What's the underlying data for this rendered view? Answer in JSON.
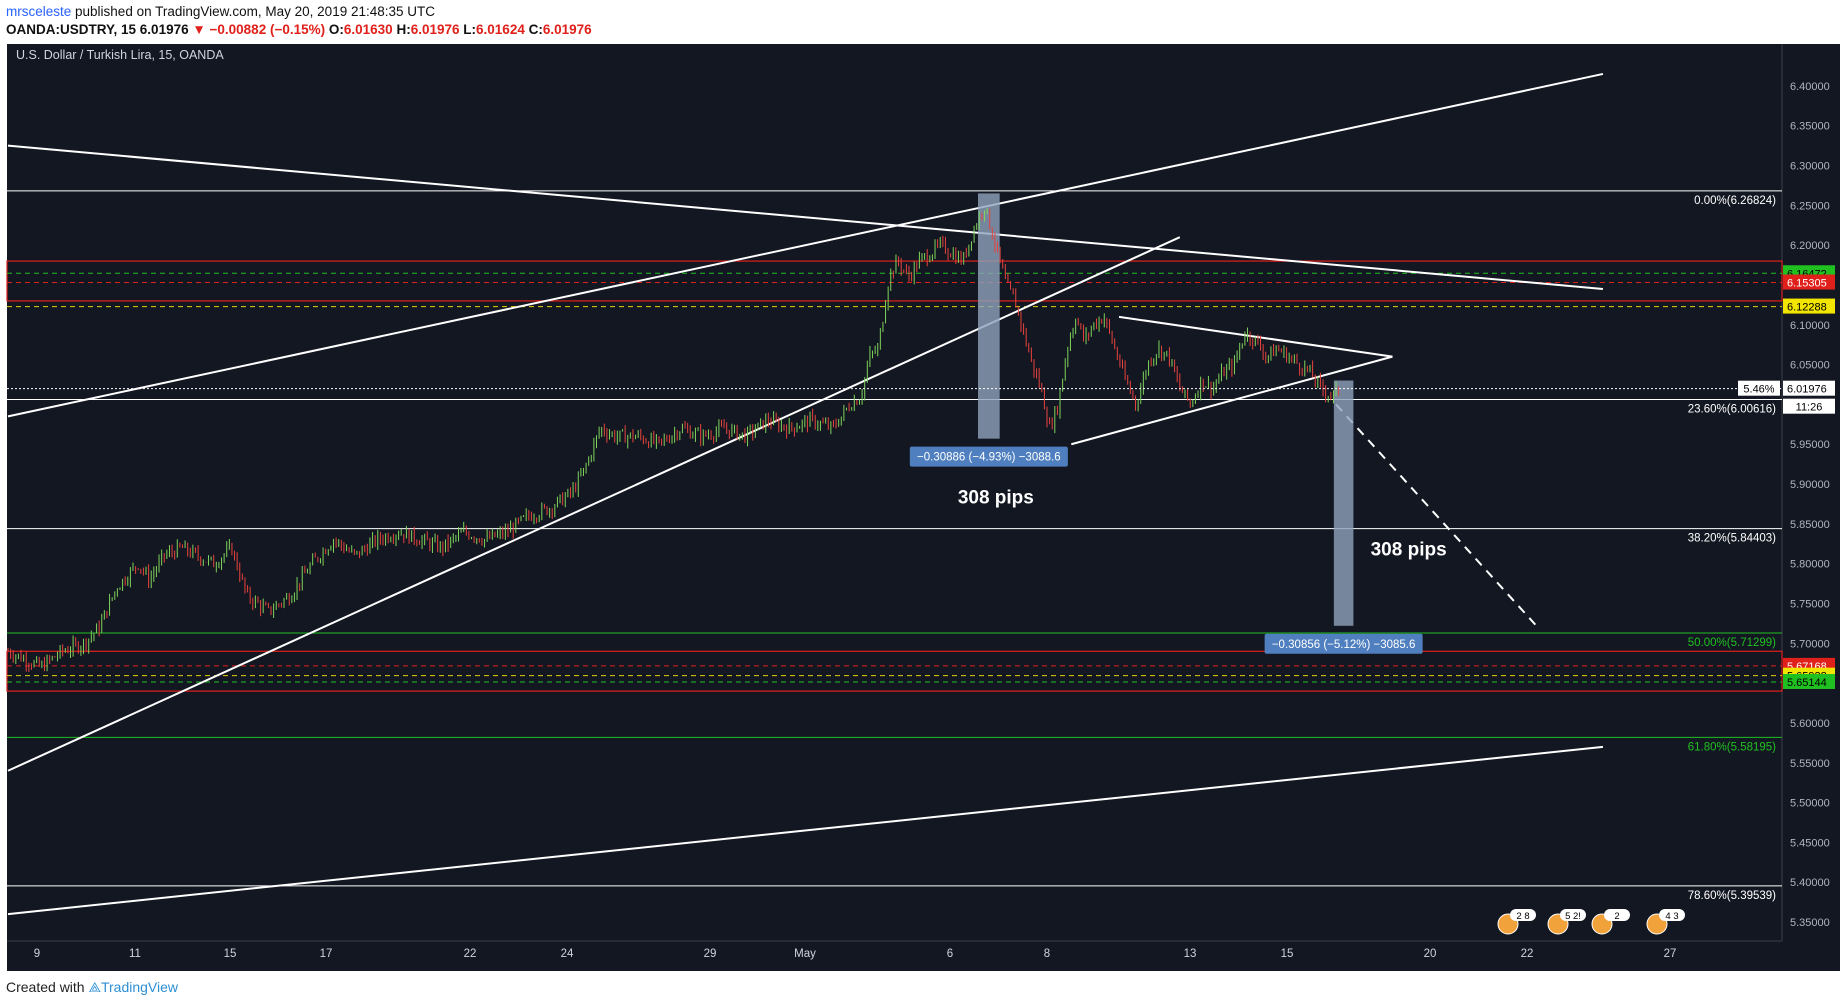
{
  "header": {
    "author": "mrsceleste",
    "published": "published on TradingView.com, May 20, 2019 21:48:35 UTC",
    "symbol": "OANDA:USDTRY, 15",
    "last": "6.01976",
    "change": "−0.00882 (−0.15%)",
    "o_label": "O:",
    "o": "6.01630",
    "h_label": "H:",
    "h": "6.01976",
    "l_label": "L:",
    "l": "6.01624",
    "c_label": "C:",
    "c": "6.01976"
  },
  "footer": {
    "created": "Created with",
    "brand": "TradingView"
  },
  "colors": {
    "background": "#131722",
    "up": "#26a69a",
    "down": "#ef5350",
    "green_candle": "#7fd35a",
    "red_candle": "#e8433d",
    "resistance": "#e0201b",
    "support_green": "#21c021",
    "dashed_yellow": "#e6d200",
    "measure_box": "#8ea2bd"
  },
  "chart_data": {
    "type": "candlestick",
    "title": "U.S. Dollar / Turkish Lira, 15, OANDA",
    "ylim": [
      5.34,
      6.43
    ],
    "y_ticks": [
      "6.40000",
      "6.35000",
      "6.30000",
      "6.25000",
      "6.20000",
      "6.15000",
      "6.10000",
      "6.05000",
      "6.00000",
      "5.95000",
      "5.90000",
      "5.85000",
      "5.80000",
      "5.75000",
      "5.70000",
      "5.65000",
      "5.60000",
      "5.55000",
      "5.50000",
      "5.45000",
      "5.40000",
      "5.35000"
    ],
    "x_ticks": [
      "9",
      "11",
      "15",
      "17",
      "22",
      "24",
      "29",
      "May",
      "6",
      "8",
      "13",
      "15",
      "20",
      "22",
      "27"
    ],
    "price_path": [
      [
        0,
        5.69
      ],
      [
        0.8,
        5.68
      ],
      [
        1.5,
        5.67
      ],
      [
        2.5,
        5.69
      ],
      [
        3.5,
        5.7
      ],
      [
        4.2,
        5.72
      ],
      [
        5,
        5.77
      ],
      [
        6,
        5.8
      ],
      [
        6.5,
        5.78
      ],
      [
        7.2,
        5.81
      ],
      [
        8,
        5.82
      ],
      [
        8.7,
        5.81
      ],
      [
        9.5,
        5.8
      ],
      [
        10.3,
        5.82
      ],
      [
        11,
        5.76
      ],
      [
        12,
        5.74
      ],
      [
        13,
        5.76
      ],
      [
        14,
        5.8
      ],
      [
        15,
        5.83
      ],
      [
        16,
        5.81
      ],
      [
        17,
        5.83
      ],
      [
        18,
        5.84
      ],
      [
        19,
        5.83
      ],
      [
        20,
        5.82
      ],
      [
        21,
        5.84
      ],
      [
        22,
        5.83
      ],
      [
        23,
        5.84
      ],
      [
        24,
        5.86
      ],
      [
        25,
        5.87
      ],
      [
        26,
        5.89
      ],
      [
        26.6,
        5.92
      ],
      [
        27.3,
        5.97
      ],
      [
        28,
        5.96
      ],
      [
        29,
        5.96
      ],
      [
        30,
        5.95
      ],
      [
        31,
        5.97
      ],
      [
        32,
        5.96
      ],
      [
        33,
        5.97
      ],
      [
        34,
        5.96
      ],
      [
        35,
        5.98
      ],
      [
        36,
        5.97
      ],
      [
        37,
        5.98
      ],
      [
        38,
        5.97
      ],
      [
        38.8,
        6.0
      ],
      [
        39.3,
        6.01
      ],
      [
        39.7,
        6.06
      ],
      [
        40.1,
        6.07
      ],
      [
        40.6,
        6.16
      ],
      [
        41,
        6.18
      ],
      [
        41.5,
        6.16
      ],
      [
        42,
        6.18
      ],
      [
        42.5,
        6.19
      ],
      [
        43,
        6.2
      ],
      [
        43.5,
        6.19
      ],
      [
        44,
        6.18
      ],
      [
        44.5,
        6.22
      ],
      [
        45,
        6.25
      ],
      [
        45.5,
        6.2
      ],
      [
        46,
        6.15
      ],
      [
        46.4,
        6.13
      ],
      [
        46.8,
        6.09
      ],
      [
        47.2,
        6.05
      ],
      [
        47.6,
        6.02
      ],
      [
        48,
        5.97
      ],
      [
        48.4,
        6.0
      ],
      [
        48.8,
        6.07
      ],
      [
        49.2,
        6.11
      ],
      [
        49.6,
        6.08
      ],
      [
        50,
        6.1
      ],
      [
        50.5,
        6.11
      ],
      [
        51,
        6.07
      ],
      [
        51.5,
        6.03
      ],
      [
        52,
        6.0
      ],
      [
        52.5,
        6.05
      ],
      [
        53,
        6.07
      ],
      [
        53.5,
        6.06
      ],
      [
        54,
        6.02
      ],
      [
        54.5,
        6.0
      ],
      [
        55,
        6.03
      ],
      [
        55.5,
        6.02
      ],
      [
        56,
        6.04
      ],
      [
        56.5,
        6.05
      ],
      [
        57,
        6.09
      ],
      [
        57.5,
        6.08
      ],
      [
        58,
        6.06
      ],
      [
        58.5,
        6.07
      ],
      [
        59,
        6.06
      ],
      [
        59.5,
        6.05
      ],
      [
        60,
        6.04
      ],
      [
        60.5,
        6.02
      ],
      [
        61,
        6.01
      ],
      [
        61.4,
        6.02
      ]
    ],
    "last_price": "6.01976",
    "change_pct_label": "5.46%",
    "countdown": "11:26",
    "price_badges": [
      {
        "value": "6.16472",
        "color": "#21c021",
        "text_color": "#000000"
      },
      {
        "value": "6.15305",
        "color": "#e0201b",
        "text_color": "#ffffff"
      },
      {
        "value": "6.12288",
        "color": "#f2e600",
        "text_color": "#000000"
      },
      {
        "value": "5.67168",
        "color": "#e0201b",
        "text_color": "#ffffff"
      },
      {
        "value": "5.65938",
        "color": "#f2e600",
        "text_color": "#000000"
      },
      {
        "value": "5.65144",
        "color": "#21c021",
        "text_color": "#000000"
      }
    ],
    "fib_levels": [
      {
        "label": "0.00%(6.26824)",
        "value": 6.26824,
        "color": "#ffffff"
      },
      {
        "label": "23.60%(6.00616)",
        "value": 6.00616,
        "color": "#ffffff"
      },
      {
        "label": "38.20%(5.84403)",
        "value": 5.84403,
        "color": "#ffffff"
      },
      {
        "label": "50.00%(5.71299)",
        "value": 5.71299,
        "color": "#21c021"
      },
      {
        "label": "61.80%(5.58195)",
        "value": 5.58195,
        "color": "#21c021"
      },
      {
        "label": "78.60%(5.39539)",
        "value": 5.39539,
        "color": "#ffffff"
      }
    ],
    "zones": [
      {
        "from": 6.13,
        "to": 6.18,
        "color": "#e0201b"
      },
      {
        "from": 5.64,
        "to": 5.69,
        "color": "#e0201b"
      }
    ],
    "dashed_levels": [
      {
        "value": 6.16472,
        "color": "#21c021"
      },
      {
        "value": 6.15305,
        "color": "#e0201b"
      },
      {
        "value": 6.12288,
        "color": "#e6d200"
      },
      {
        "value": 5.67168,
        "color": "#e0201b"
      },
      {
        "value": 5.65938,
        "color": "#e6d200"
      },
      {
        "value": 5.65144,
        "color": "#21c021"
      }
    ],
    "trendlines": [
      {
        "x1": 0,
        "y1": 6.325,
        "x2": 73.5,
        "y2": 6.145
      },
      {
        "x1": 0,
        "y1": 5.985,
        "x2": 73.5,
        "y2": 6.415
      },
      {
        "x1": 0,
        "y1": 5.54,
        "x2": 54,
        "y2": 6.21
      },
      {
        "x1": 0,
        "y1": 5.36,
        "x2": 73.5,
        "y2": 5.57
      },
      {
        "x1": 49,
        "y1": 5.95,
        "x2": 63.8,
        "y2": 6.06
      },
      {
        "x1": 51.2,
        "y1": 6.11,
        "x2": 63.8,
        "y2": 6.06
      }
    ],
    "projection": {
      "x1": 61.2,
      "y1": 6.0,
      "x2": 70.5,
      "y2": 5.72
    },
    "measurements": [
      {
        "x1": 44.7,
        "x2": 45.7,
        "y_top": 6.265,
        "y_bottom": 5.957,
        "label": "−0.30886 (−4.93%) −3088.6",
        "caption": "308 pips"
      },
      {
        "x1": 61.1,
        "x2": 62.0,
        "y_top": 6.03,
        "y_bottom": 5.722,
        "label": "−0.30856 (−5.12%) −3085.6",
        "caption": "308 pips"
      }
    ],
    "events": [
      "2 8",
      "5 2!",
      "2",
      "4 3"
    ]
  }
}
